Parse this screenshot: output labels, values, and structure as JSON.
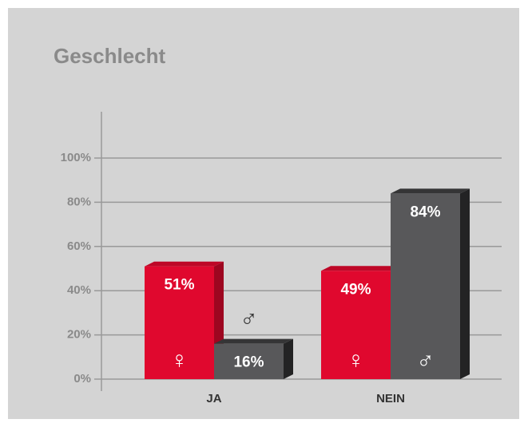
{
  "chart_data": {
    "type": "bar",
    "title": "Geschlecht",
    "categories": [
      "JA",
      "NEIN"
    ],
    "series": [
      {
        "name": "♀",
        "color": "#e0082e",
        "values": [
          51,
          49
        ],
        "value_labels": [
          "51%",
          "49%"
        ]
      },
      {
        "name": "♂",
        "color": "#58585a",
        "values": [
          16,
          84
        ],
        "value_labels": [
          "16%",
          "84%"
        ]
      }
    ],
    "ylim": [
      0,
      100
    ],
    "yticks": [
      {
        "value": 0,
        "label": "0%"
      },
      {
        "value": 20,
        "label": "20%"
      },
      {
        "value": 40,
        "label": "40%"
      },
      {
        "value": 60,
        "label": "60%"
      },
      {
        "value": 80,
        "label": "80%"
      },
      {
        "value": 100,
        "label": "100%"
      }
    ],
    "grid": true
  }
}
